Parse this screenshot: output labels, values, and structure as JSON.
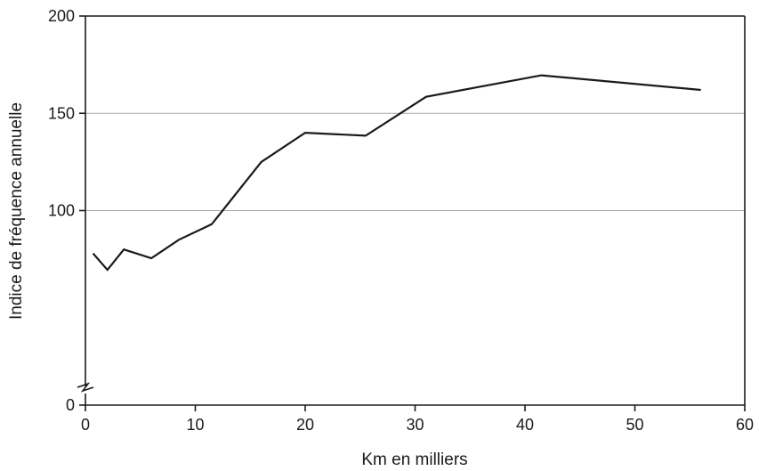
{
  "chart_data": {
    "type": "line",
    "title": "",
    "xlabel": "Km en milliers",
    "ylabel": "Indice de fréquence annuelle",
    "xlim": [
      0,
      60
    ],
    "ylim": [
      0,
      200
    ],
    "x_ticks": [
      0,
      10,
      20,
      30,
      40,
      50,
      60
    ],
    "y_ticks": [
      0,
      100,
      150,
      200
    ],
    "y_gridlines": [
      100,
      150
    ],
    "y_axis_break": true,
    "legend": "none",
    "series": [
      {
        "color": "#1a1a1a",
        "points": [
          {
            "x": 0.7,
            "y": 78
          },
          {
            "x": 2.0,
            "y": 69.5
          },
          {
            "x": 3.5,
            "y": 80
          },
          {
            "x": 6.0,
            "y": 75.5
          },
          {
            "x": 8.5,
            "y": 85
          },
          {
            "x": 11.5,
            "y": 93
          },
          {
            "x": 16.0,
            "y": 125
          },
          {
            "x": 20.0,
            "y": 140
          },
          {
            "x": 25.5,
            "y": 138.5
          },
          {
            "x": 31.0,
            "y": 158.5
          },
          {
            "x": 41.5,
            "y": 169.5
          },
          {
            "x": 56.0,
            "y": 162
          }
        ]
      }
    ]
  }
}
